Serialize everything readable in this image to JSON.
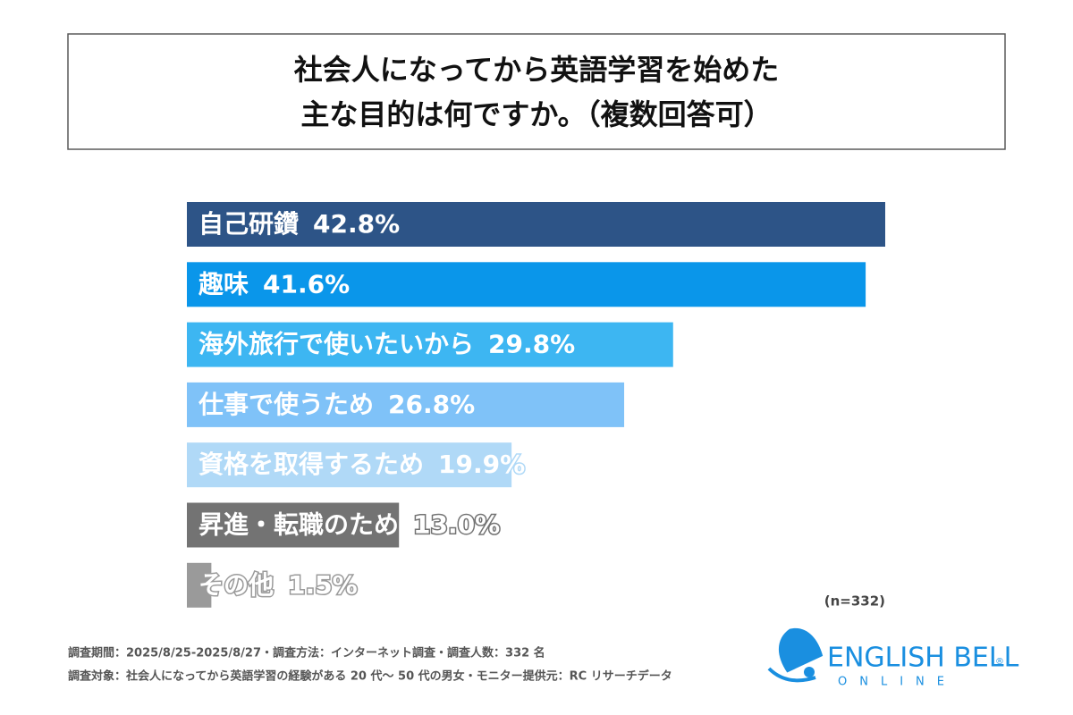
{
  "chart_data": {
    "type": "hbar",
    "title": [
      "社会人になってから英語学習を始めた",
      "主な目的は何ですか。（複数回答可）"
    ],
    "categories": [
      "自己研鑽",
      "趣味",
      "海外旅行で使いたいから",
      "仕事で使うため",
      "資格を取得するため",
      "昇進・転職のため",
      "その他"
    ],
    "values": [
      42.8,
      41.6,
      29.8,
      26.8,
      19.9,
      13.0,
      1.5
    ],
    "value_labels": [
      "42.8%",
      "41.6%",
      "29.8%",
      "26.8%",
      "19.9%",
      "13.0%",
      "1.5%"
    ],
    "colors": [
      "#2d5487",
      "#0a96ea",
      "#3db6f2",
      "#7fc2f8",
      "#b0d9f7",
      "#737373",
      "#9a9a9a"
    ],
    "note": "(n=332)",
    "source": [
      "調査期間：2025/8/25-2025/8/27・調査方法：インターネット調査・調査人数：332 名",
      "調査対象：社会人になってから英語学習の経験がある 20 代〜 50 代の男女・モニター提供元：RC リサーチデータ"
    ]
  },
  "logo": {
    "name": "ENGLISH BELL",
    "mark": "®",
    "sub": "ONLINE"
  }
}
